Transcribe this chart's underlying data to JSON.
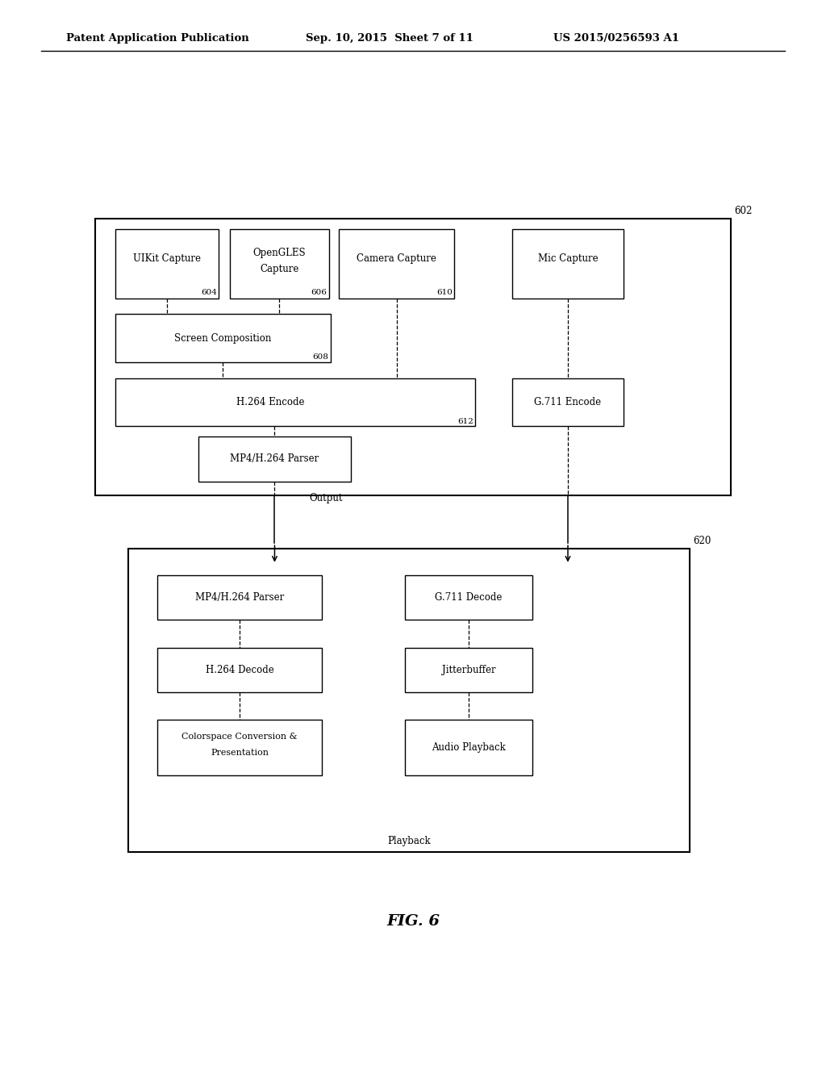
{
  "bg_color": "#ffffff",
  "header_left": "Patent Application Publication",
  "header_mid": "Sep. 10, 2015  Sheet 7 of 11",
  "header_right": "US 2015/0256593 A1",
  "fig_label": "FIG. 6"
}
